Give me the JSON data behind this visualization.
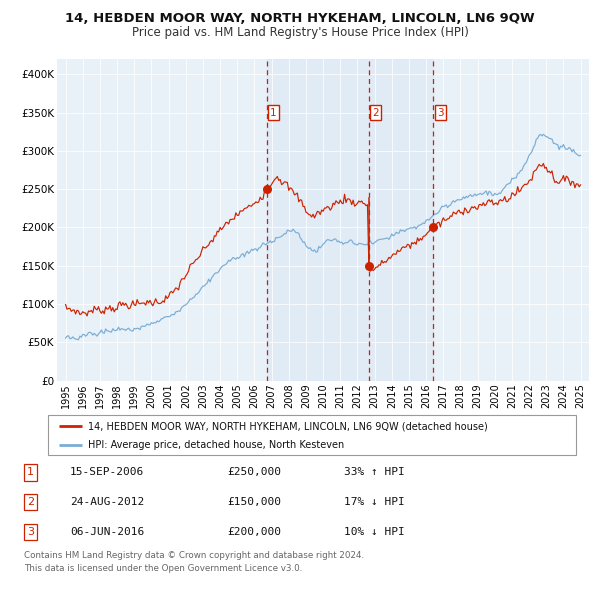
{
  "title": "14, HEBDEN MOOR WAY, NORTH HYKEHAM, LINCOLN, LN6 9QW",
  "subtitle": "Price paid vs. HM Land Registry's House Price Index (HPI)",
  "legend_red": "14, HEBDEN MOOR WAY, NORTH HYKEHAM, LINCOLN, LN6 9QW (detached house)",
  "legend_blue": "HPI: Average price, detached house, North Kesteven",
  "footer1": "Contains HM Land Registry data © Crown copyright and database right 2024.",
  "footer2": "This data is licensed under the Open Government Licence v3.0.",
  "table_rows": [
    {
      "num": "1",
      "date": "15-SEP-2006",
      "price": "£250,000",
      "hpi": "33% ↑ HPI"
    },
    {
      "num": "2",
      "date": "24-AUG-2012",
      "price": "£150,000",
      "hpi": "17% ↓ HPI"
    },
    {
      "num": "3",
      "date": "06-JUN-2016",
      "price": "£200,000",
      "hpi": "10% ↓ HPI"
    }
  ],
  "transaction_dates_num": [
    2006.71,
    2012.65,
    2016.43
  ],
  "trans_prices": [
    250000,
    150000,
    200000
  ],
  "bg_color": "#e8f0f8",
  "red_color": "#cc2200",
  "blue_color": "#7aadd4",
  "ylim": [
    0,
    420000
  ],
  "yticks": [
    0,
    50000,
    100000,
    150000,
    200000,
    250000,
    300000,
    350000,
    400000
  ],
  "ytick_labels": [
    "£0",
    "£50K",
    "£100K",
    "£150K",
    "£200K",
    "£250K",
    "£300K",
    "£350K",
    "£400K"
  ],
  "xlim_start": 1994.5,
  "xlim_end": 2025.5,
  "xtick_years": [
    1995,
    1996,
    1997,
    1998,
    1999,
    2000,
    2001,
    2002,
    2003,
    2004,
    2005,
    2006,
    2007,
    2008,
    2009,
    2010,
    2011,
    2012,
    2013,
    2014,
    2015,
    2016,
    2017,
    2018,
    2019,
    2020,
    2021,
    2022,
    2023,
    2024,
    2025
  ]
}
